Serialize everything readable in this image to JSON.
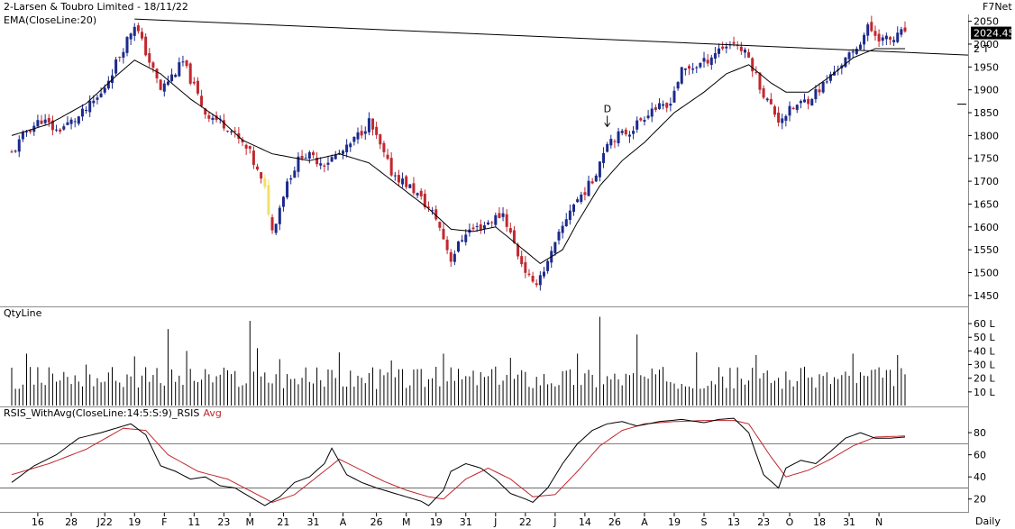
{
  "header": {
    "title": "2-Larsen & Toubro Limited - 18/11/22",
    "indicator": "EMA(CloseLine:20)",
    "brand": "F7Net"
  },
  "colors": {
    "up": "#1c2a8c",
    "down": "#c0282f",
    "doji": "#f1e06a",
    "line": "#000000",
    "avg": "#c0282f",
    "grid": "#cccccc"
  },
  "chart_data": [
    {
      "type": "candlestick",
      "title": "2-Larsen & Toubro Limited - 18/11/22",
      "indicator": "EMA(CloseLine:20)",
      "ylim": [
        1430,
        2065
      ],
      "y_ticks": [
        "2050",
        "2000",
        "1950",
        "1900",
        "1850",
        "1800",
        "1750",
        "1700",
        "1650",
        "1600",
        "1550",
        "1500",
        "1450"
      ],
      "y_tick_values": [
        2050,
        2000,
        1950,
        1900,
        1850,
        1800,
        1750,
        1700,
        1650,
        1600,
        1550,
        1500,
        1450
      ],
      "last_price_label": "2024.45",
      "last_price": 2024.45,
      "trendline_tag": "2 T",
      "trendline_tag_value": 1990,
      "arrow_label": "D",
      "arrow_price": 1800,
      "arrow_candle": 160,
      "trendline": {
        "from": [
          33,
          2055
        ],
        "to": [
          260,
          1975
        ]
      },
      "close_anchors": [
        [
          0,
          1760
        ],
        [
          4,
          1810
        ],
        [
          8,
          1835
        ],
        [
          12,
          1810
        ],
        [
          18,
          1840
        ],
        [
          24,
          1890
        ],
        [
          33,
          2045
        ],
        [
          40,
          1900
        ],
        [
          46,
          1960
        ],
        [
          52,
          1850
        ],
        [
          58,
          1820
        ],
        [
          64,
          1760
        ],
        [
          68,
          1680
        ],
        [
          70,
          1590
        ],
        [
          74,
          1700
        ],
        [
          78,
          1760
        ],
        [
          84,
          1740
        ],
        [
          90,
          1770
        ],
        [
          96,
          1830
        ],
        [
          102,
          1720
        ],
        [
          108,
          1680
        ],
        [
          114,
          1620
        ],
        [
          118,
          1530
        ],
        [
          122,
          1590
        ],
        [
          126,
          1600
        ],
        [
          132,
          1630
        ],
        [
          136,
          1540
        ],
        [
          140,
          1470
        ],
        [
          144,
          1520
        ],
        [
          150,
          1640
        ],
        [
          156,
          1700
        ],
        [
          160,
          1790
        ],
        [
          166,
          1810
        ],
        [
          172,
          1860
        ],
        [
          176,
          1860
        ],
        [
          180,
          1940
        ],
        [
          186,
          1960
        ],
        [
          190,
          1990
        ],
        [
          194,
          2005
        ],
        [
          198,
          1970
        ],
        [
          202,
          1890
        ],
        [
          206,
          1835
        ],
        [
          210,
          1860
        ],
        [
          214,
          1880
        ],
        [
          218,
          1910
        ],
        [
          222,
          1950
        ],
        [
          226,
          1980
        ],
        [
          230,
          2035
        ],
        [
          234,
          2010
        ],
        [
          237,
          2010
        ],
        [
          240,
          2030
        ]
      ],
      "ema_anchors": [
        [
          0,
          1800
        ],
        [
          10,
          1825
        ],
        [
          20,
          1870
        ],
        [
          28,
          1930
        ],
        [
          33,
          1965
        ],
        [
          40,
          1935
        ],
        [
          48,
          1880
        ],
        [
          56,
          1835
        ],
        [
          62,
          1790
        ],
        [
          70,
          1760
        ],
        [
          80,
          1745
        ],
        [
          88,
          1760
        ],
        [
          96,
          1740
        ],
        [
          104,
          1690
        ],
        [
          112,
          1640
        ],
        [
          118,
          1595
        ],
        [
          124,
          1590
        ],
        [
          130,
          1600
        ],
        [
          136,
          1560
        ],
        [
          142,
          1520
        ],
        [
          148,
          1550
        ],
        [
          152,
          1610
        ],
        [
          158,
          1690
        ],
        [
          164,
          1745
        ],
        [
          170,
          1785
        ],
        [
          178,
          1850
        ],
        [
          186,
          1895
        ],
        [
          192,
          1935
        ],
        [
          198,
          1955
        ],
        [
          204,
          1915
        ],
        [
          208,
          1895
        ],
        [
          214,
          1895
        ],
        [
          220,
          1930
        ],
        [
          226,
          1970
        ],
        [
          232,
          1990
        ],
        [
          240,
          1990
        ]
      ]
    },
    {
      "type": "bar",
      "title": "QtyLine",
      "y_ticks": [
        "60 L",
        "50 L",
        "40 L",
        "30 L",
        "20 L",
        "10 L"
      ],
      "y_tick_values": [
        6000000,
        5000000,
        4000000,
        3000000,
        2000000,
        1000000
      ],
      "ylim": [
        0,
        6600000
      ],
      "volume_level": 2200000,
      "spikes": [
        [
          4,
          3800000
        ],
        [
          10,
          2800000
        ],
        [
          20,
          3000000
        ],
        [
          33,
          3600000
        ],
        [
          42,
          5600000
        ],
        [
          47,
          4000000
        ],
        [
          64,
          6200000
        ],
        [
          66,
          4200000
        ],
        [
          72,
          3400000
        ],
        [
          88,
          3900000
        ],
        [
          102,
          3300000
        ],
        [
          116,
          3800000
        ],
        [
          134,
          3500000
        ],
        [
          152,
          3800000
        ],
        [
          158,
          6500000
        ],
        [
          168,
          5200000
        ],
        [
          184,
          3900000
        ],
        [
          200,
          3700000
        ],
        [
          226,
          3800000
        ],
        [
          238,
          3700000
        ]
      ]
    },
    {
      "type": "line",
      "title": "RSIS_WithAvg(CloseLine:14:5:S:9)_RSIS",
      "series": [
        {
          "name": "RSIS"
        },
        {
          "name": "Avg"
        }
      ],
      "y_ticks": [
        "80",
        "60",
        "40",
        "20"
      ],
      "y_tick_values": [
        80,
        60,
        40,
        20
      ],
      "ylim": [
        10,
        98
      ],
      "reference_lines": [
        70,
        30
      ],
      "rsi_anchors": [
        [
          0,
          35
        ],
        [
          6,
          50
        ],
        [
          12,
          60
        ],
        [
          18,
          75
        ],
        [
          24,
          80
        ],
        [
          32,
          88
        ],
        [
          36,
          78
        ],
        [
          40,
          50
        ],
        [
          44,
          45
        ],
        [
          48,
          38
        ],
        [
          52,
          40
        ],
        [
          56,
          32
        ],
        [
          60,
          30
        ],
        [
          64,
          22
        ],
        [
          68,
          14
        ],
        [
          72,
          22
        ],
        [
          76,
          35
        ],
        [
          80,
          40
        ],
        [
          84,
          52
        ],
        [
          86,
          66
        ],
        [
          90,
          42
        ],
        [
          94,
          35
        ],
        [
          98,
          30
        ],
        [
          102,
          26
        ],
        [
          106,
          22
        ],
        [
          110,
          18
        ],
        [
          112,
          14
        ],
        [
          116,
          28
        ],
        [
          118,
          45
        ],
        [
          122,
          52
        ],
        [
          126,
          48
        ],
        [
          130,
          38
        ],
        [
          134,
          25
        ],
        [
          138,
          20
        ],
        [
          140,
          17
        ],
        [
          144,
          30
        ],
        [
          148,
          52
        ],
        [
          152,
          70
        ],
        [
          156,
          82
        ],
        [
          160,
          88
        ],
        [
          164,
          90
        ],
        [
          168,
          86
        ],
        [
          174,
          90
        ],
        [
          180,
          92
        ],
        [
          186,
          89
        ],
        [
          190,
          92
        ],
        [
          194,
          93
        ],
        [
          198,
          80
        ],
        [
          202,
          42
        ],
        [
          206,
          30
        ],
        [
          208,
          48
        ],
        [
          212,
          55
        ],
        [
          216,
          52
        ],
        [
          220,
          63
        ],
        [
          224,
          75
        ],
        [
          228,
          80
        ],
        [
          232,
          75
        ],
        [
          236,
          75
        ],
        [
          240,
          76
        ]
      ],
      "avg_anchors": [
        [
          0,
          42
        ],
        [
          10,
          52
        ],
        [
          20,
          65
        ],
        [
          30,
          84
        ],
        [
          36,
          82
        ],
        [
          42,
          60
        ],
        [
          50,
          45
        ],
        [
          58,
          38
        ],
        [
          66,
          24
        ],
        [
          70,
          17
        ],
        [
          76,
          24
        ],
        [
          82,
          40
        ],
        [
          88,
          56
        ],
        [
          94,
          46
        ],
        [
          100,
          36
        ],
        [
          106,
          28
        ],
        [
          112,
          22
        ],
        [
          116,
          20
        ],
        [
          122,
          38
        ],
        [
          128,
          48
        ],
        [
          134,
          38
        ],
        [
          140,
          22
        ],
        [
          146,
          24
        ],
        [
          152,
          45
        ],
        [
          158,
          68
        ],
        [
          164,
          82
        ],
        [
          170,
          88
        ],
        [
          178,
          90
        ],
        [
          186,
          91
        ],
        [
          194,
          91
        ],
        [
          198,
          88
        ],
        [
          204,
          58
        ],
        [
          208,
          40
        ],
        [
          214,
          46
        ],
        [
          220,
          56
        ],
        [
          226,
          68
        ],
        [
          232,
          76
        ],
        [
          240,
          77
        ]
      ]
    }
  ],
  "x_axis": {
    "labels": [
      "16",
      "28",
      "J22",
      "19",
      "F",
      "11",
      "23",
      "M",
      "21",
      "31",
      "A",
      "26",
      "M",
      "19",
      "31",
      "J",
      "22",
      "J",
      "14",
      "26",
      "A",
      "19",
      "S",
      "13",
      "23",
      "O",
      "18",
      "31",
      "N"
    ],
    "label_candles": [
      7,
      16,
      25,
      33,
      41,
      49,
      57,
      64,
      73,
      81,
      89,
      98,
      106,
      114,
      122,
      130,
      138,
      146,
      154,
      162,
      170,
      178,
      186,
      194,
      202,
      209,
      217,
      225,
      233
    ],
    "frequency": "Daily"
  }
}
